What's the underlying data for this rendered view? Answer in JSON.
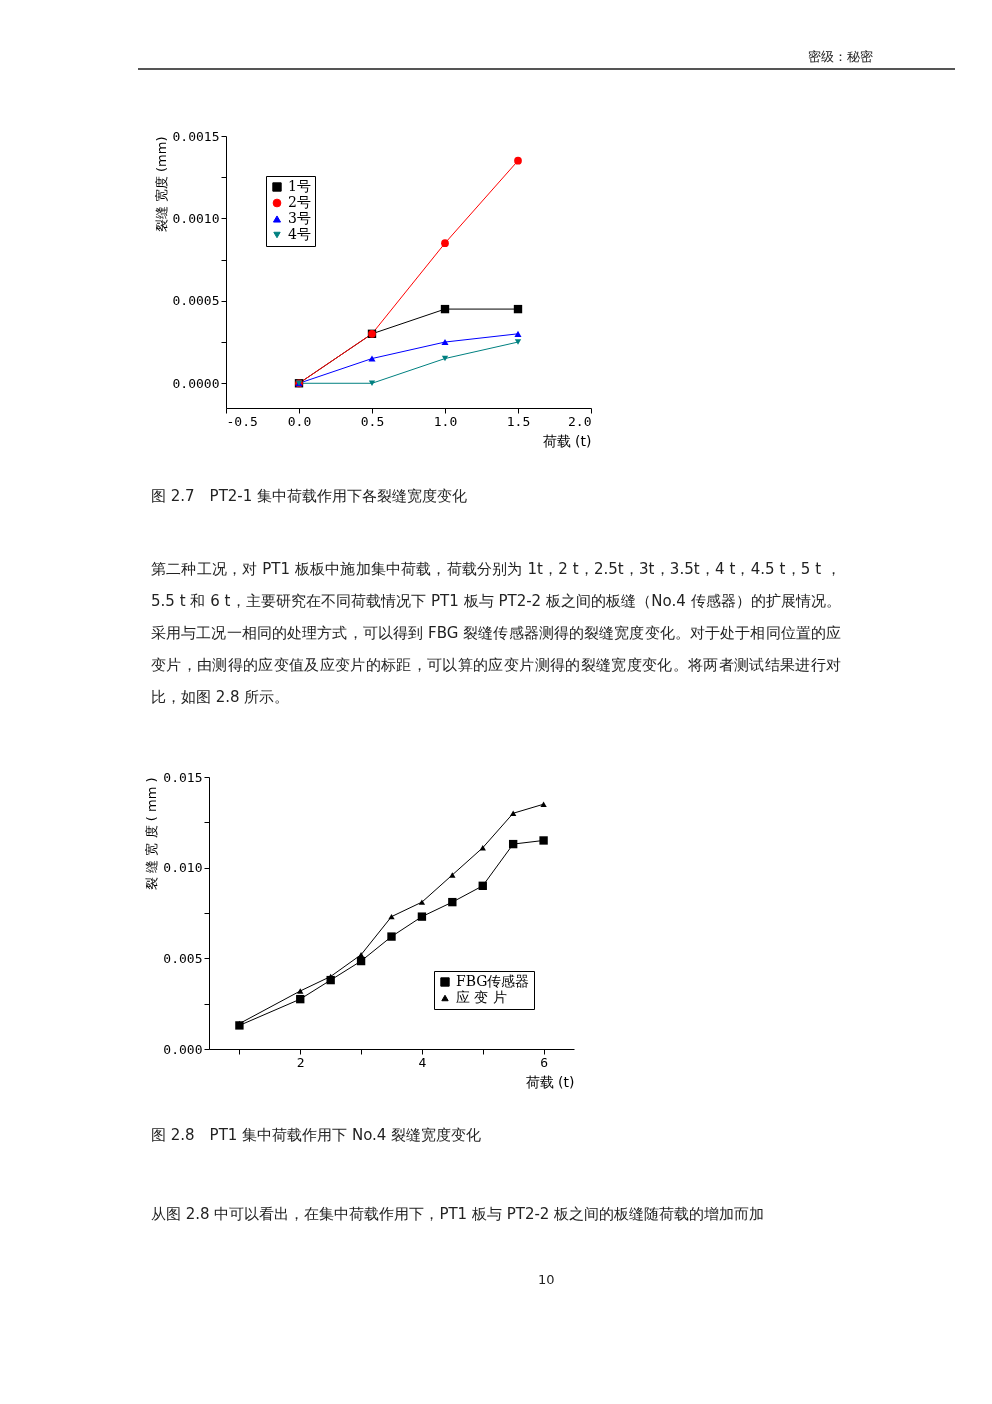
{
  "chart_data": [
    {
      "type": "line",
      "title": "图 2.7　PT2-1 集中荷载作用下各裂缝宽度变化",
      "xlabel": "荷载 (t)",
      "ylabel": "裂缝 宽度 (mm)",
      "x": [
        0,
        0.5,
        1,
        1.5
      ],
      "xlim": [
        -0.5,
        2
      ],
      "xticks": [
        {
          "value": -0.5,
          "label": "-0.5"
        },
        {
          "value": 0,
          "label": "0.0"
        },
        0.5,
        {
          "value": 1,
          "label": "1.0"
        },
        1.5,
        {
          "value": 2,
          "label": "2.0"
        }
      ],
      "ylim": [
        -0.00015,
        0.0015
      ],
      "yticks": [
        {
          "value": 0,
          "label": "0.0000"
        },
        {
          "value": 0.00025,
          "label": null
        },
        {
          "value": 0.0005,
          "label": "0.0005"
        },
        {
          "value": 0.00075,
          "label": null
        },
        {
          "value": 0.001,
          "label": "0.0010"
        },
        {
          "value": 0.00125,
          "label": null
        },
        {
          "value": 0.0015,
          "label": "0.0015"
        }
      ],
      "legend": "top left",
      "series": [
        {
          "name": "1号",
          "color": "#000000",
          "marker": "square",
          "values": [
            0,
            0.0003,
            0.00045,
            0.00045
          ]
        },
        {
          "name": "2号",
          "color": "#ff0000",
          "marker": "circle",
          "values": [
            0,
            0.0003,
            0.00085,
            0.00135
          ]
        },
        {
          "name": "3号",
          "color": "#0000ff",
          "marker": "triangle",
          "values": [
            0,
            0.00015,
            0.00025,
            0.0003
          ]
        },
        {
          "name": "4号",
          "color": "#008080",
          "marker": "triangle-down",
          "values": [
            0,
            0,
            0.00015,
            0.00025
          ]
        }
      ],
      "annotations": [
        "密级：秘密",
        "第二种工况，对 PT1 板板中施加集中荷载，荷载分别为 1t，2 t，2.5t，3t，3.5t，4 t，4.5 t，5 t ，5.5 t 和 6 t，主要研究在不同荷载情况下 PT1 板与 PT2-2 板之间的板缝（No.4 传感器）的扩展情况。采用与工况一相同的处理方式，可以得到 FBG 裂缝传感器测得的裂缝宽度变化。对于处于相同位置的应变片，由测得的应变值及应变片的标距，可以算的应变片测得的裂缝宽度变化。将两者测试结果进行对比，如图 2.8 所示。"
      ]
    },
    {
      "type": "line",
      "title": "图 2.8　PT1 集中荷载作用下 No.4 裂缝宽度变化",
      "xlabel": "荷载 (t)",
      "ylabel": "裂 缝 宽 度 ( mm )",
      "x": [
        1,
        2,
        2.5,
        3,
        3.5,
        4,
        4.5,
        5,
        5.5,
        6
      ],
      "xlim": [
        0.5,
        6.5
      ],
      "xticks": [
        {
          "value": 1,
          "label": null
        },
        2,
        {
          "value": 3,
          "label": null
        },
        4,
        {
          "value": 5,
          "label": null
        },
        6
      ],
      "ylim": [
        0,
        0.015
      ],
      "yticks": [
        {
          "value": 0,
          "label": "0.000"
        },
        {
          "value": 0.0025,
          "label": null
        },
        {
          "value": 0.005,
          "label": "0.005"
        },
        {
          "value": 0.0075,
          "label": null
        },
        {
          "value": 0.01,
          "label": "0.010"
        },
        {
          "value": 0.0125,
          "label": null
        },
        {
          "value": 0.015,
          "label": "0.015"
        }
      ],
      "legend": "bottom right",
      "series": [
        {
          "name": "FBG传感器",
          "color": "#000000",
          "marker": "square",
          "values": [
            0.0013,
            0.00275,
            0.0038,
            0.00485,
            0.0062,
            0.0073,
            0.0081,
            0.009,
            0.0113,
            0.0115
          ]
        },
        {
          "name": "应 变 片",
          "color": "#000000",
          "marker": "triangle",
          "values": [
            0.0014,
            0.0032,
            0.004,
            0.0052,
            0.0073,
            0.0081,
            0.0096,
            0.0111,
            0.013,
            0.0135
          ]
        }
      ],
      "annotations": [
        "从图 2.8 中可以看出，在集中荷载作用下，PT1 板与 PT2-2 板之间的板缝随荷载的增加而加",
        "10"
      ]
    }
  ]
}
